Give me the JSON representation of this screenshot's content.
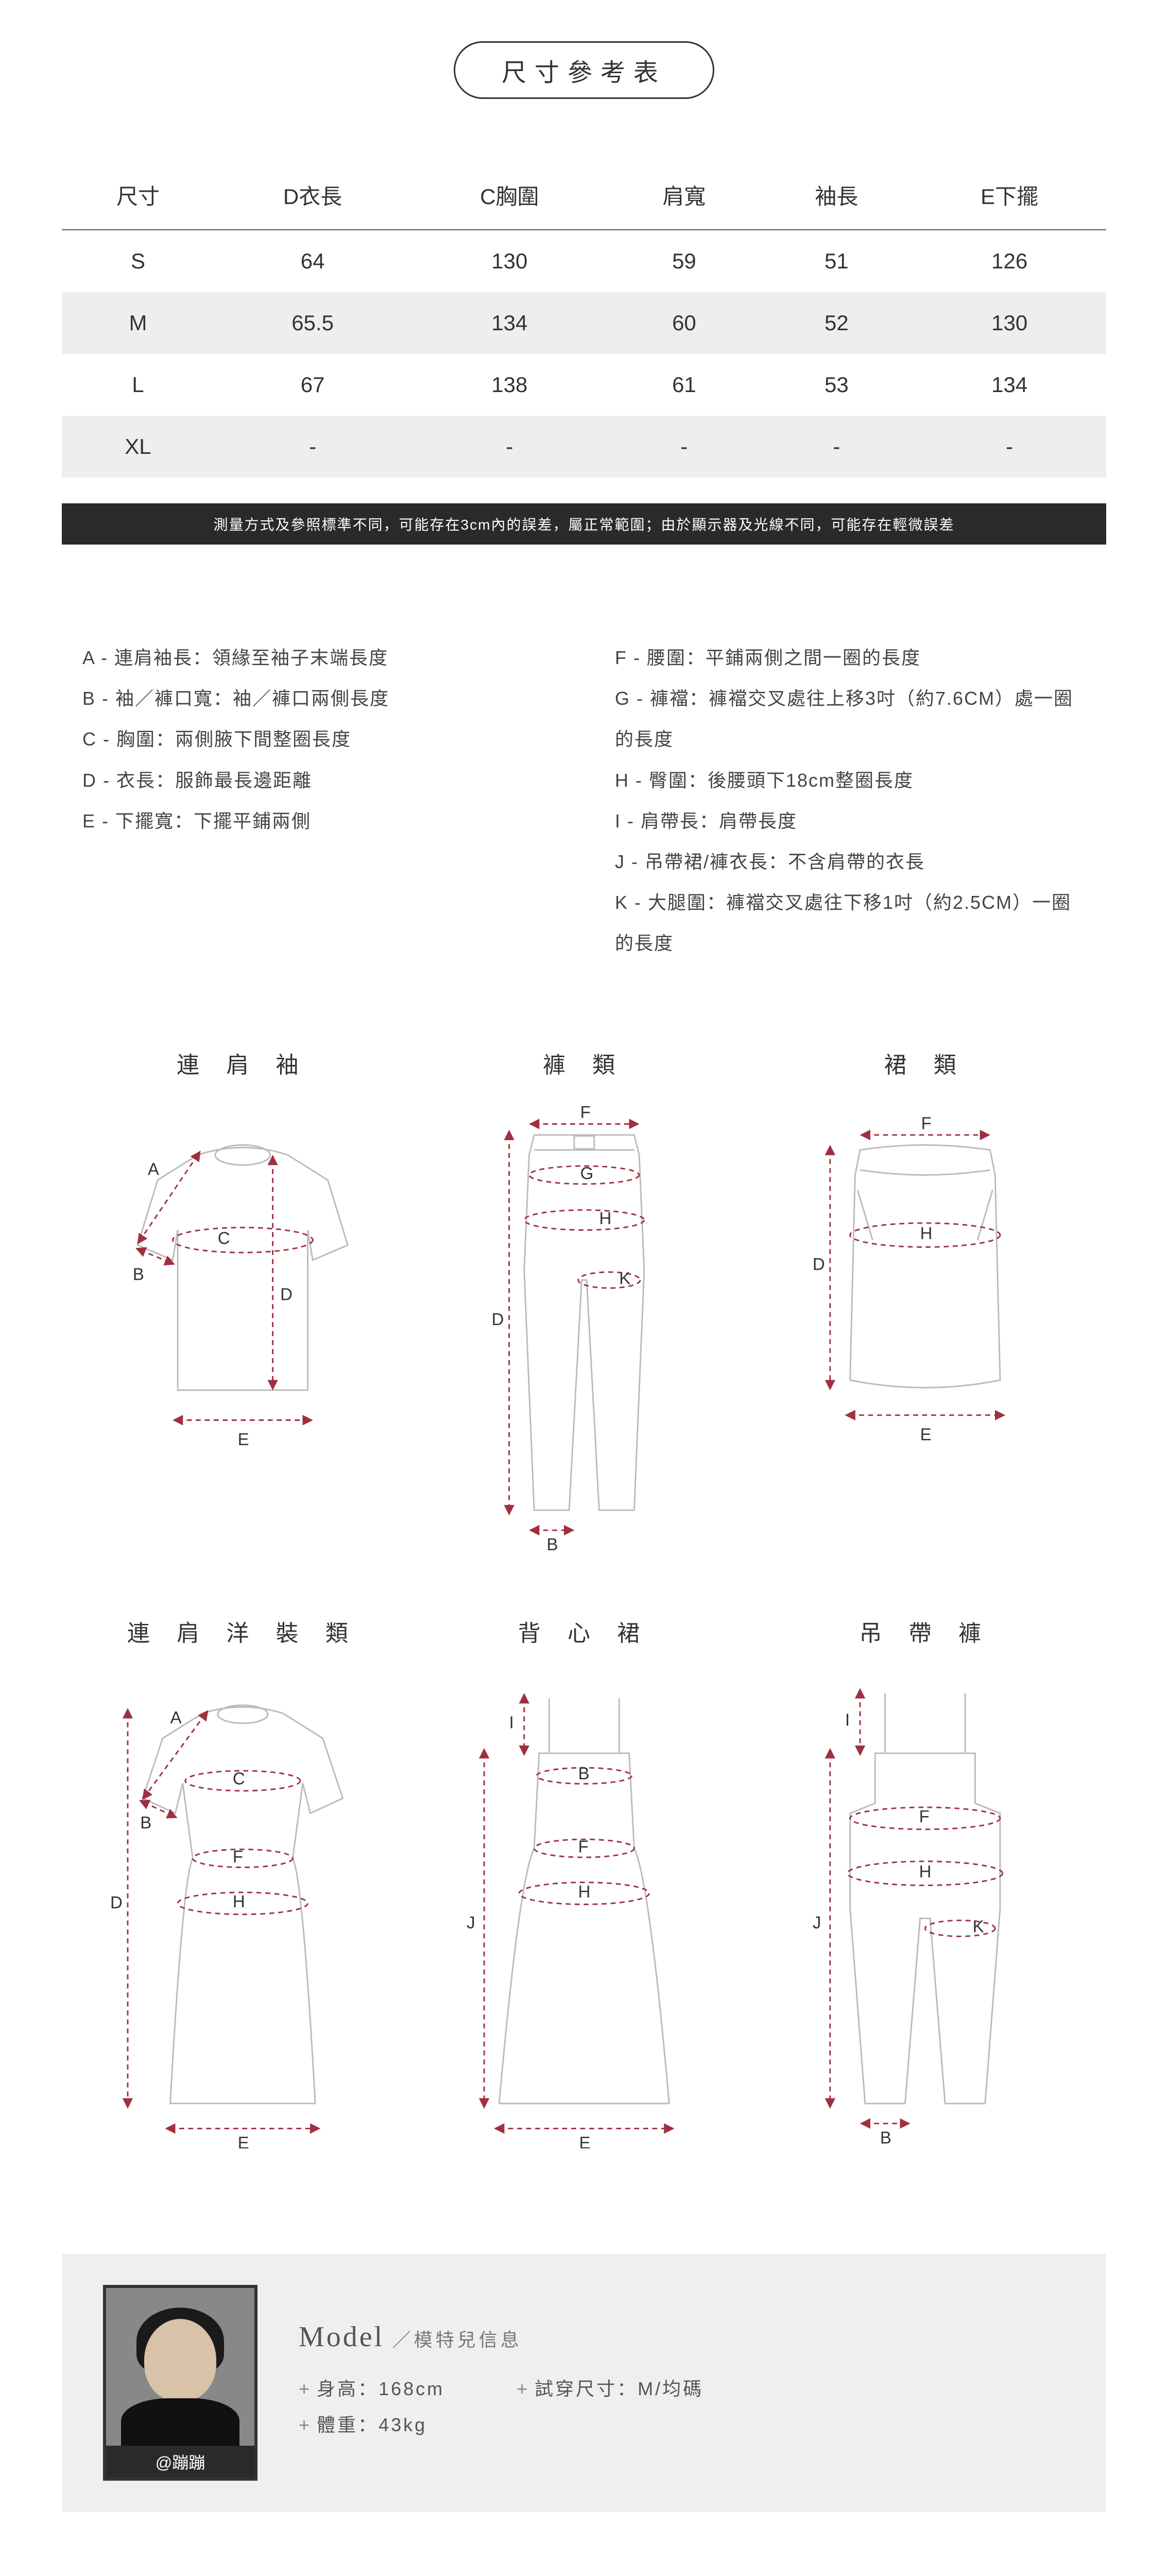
{
  "title": "尺寸參考表",
  "size_table": {
    "columns": [
      "尺寸",
      "D衣長",
      "C胸圍",
      "肩寬",
      "袖長",
      "E下擺"
    ],
    "rows": [
      [
        "S",
        "64",
        "130",
        "59",
        "51",
        "126"
      ],
      [
        "M",
        "65.5",
        "134",
        "60",
        "52",
        "130"
      ],
      [
        "L",
        "67",
        "138",
        "61",
        "53",
        "134"
      ],
      [
        "XL",
        "-",
        "-",
        "-",
        "-",
        "-"
      ]
    ],
    "zebra_bg": "#eeeeee",
    "header_border": "#555555"
  },
  "note": "測量方式及參照標準不同，可能存在3cm內的誤差，屬正常範圍；由於顯示器及光線不同，可能存在輕微誤差",
  "legend": {
    "A": "連肩袖長：領緣至袖子末端長度",
    "B": "袖／褲口寬：袖／褲口兩側長度",
    "C": "胸圍：兩側腋下間整圈長度",
    "D": "衣長：服飾最長邊距離",
    "E": "下擺寬：下擺平鋪兩側",
    "F": "腰圍：平鋪兩側之間一圈的長度",
    "G": "褲襠：褲襠交叉處往上移3吋（約7.6CM）處一圈的長度",
    "H": "臀圍：後腰頭下18cm整圈長度",
    "I": "肩帶長：肩帶長度",
    "J": "吊帶裙/褲衣長：不含肩帶的衣長",
    "K": "大腿圍：褲襠交叉處往下移1吋（約2.5CM）一圈的長度"
  },
  "diagrams": {
    "raglan_top": {
      "title": "連 肩 袖",
      "labels": [
        "A",
        "B",
        "C",
        "D",
        "E"
      ]
    },
    "pants": {
      "title": "褲 類",
      "labels": [
        "F",
        "G",
        "H",
        "K",
        "D",
        "B"
      ]
    },
    "skirt": {
      "title": "裙 類",
      "labels": [
        "F",
        "H",
        "D",
        "E"
      ]
    },
    "raglan_dress": {
      "title": "連 肩 洋 裝 類",
      "labels": [
        "A",
        "B",
        "C",
        "F",
        "H",
        "D",
        "E"
      ]
    },
    "cami_dress": {
      "title": "背 心 裙",
      "labels": [
        "I",
        "B",
        "F",
        "H",
        "J",
        "E"
      ]
    },
    "overalls": {
      "title": "吊 帶 褲",
      "labels": [
        "I",
        "F",
        "H",
        "K",
        "J",
        "B"
      ]
    }
  },
  "colors": {
    "outline": "#bbbbbb",
    "measure": "#a03040",
    "text": "#333333",
    "bg": "#ffffff",
    "note_bg": "#2a2a2a",
    "model_panel_bg": "#efefef"
  },
  "model": {
    "heading": "Model",
    "heading_sub": "／模特兒信息",
    "handle": "@蹦蹦",
    "height_label": "身高",
    "height_value": "168cm",
    "weight_label": "體重",
    "weight_value": "43kg",
    "trysize_label": "試穿尺寸",
    "trysize_value": "M/均碼"
  }
}
